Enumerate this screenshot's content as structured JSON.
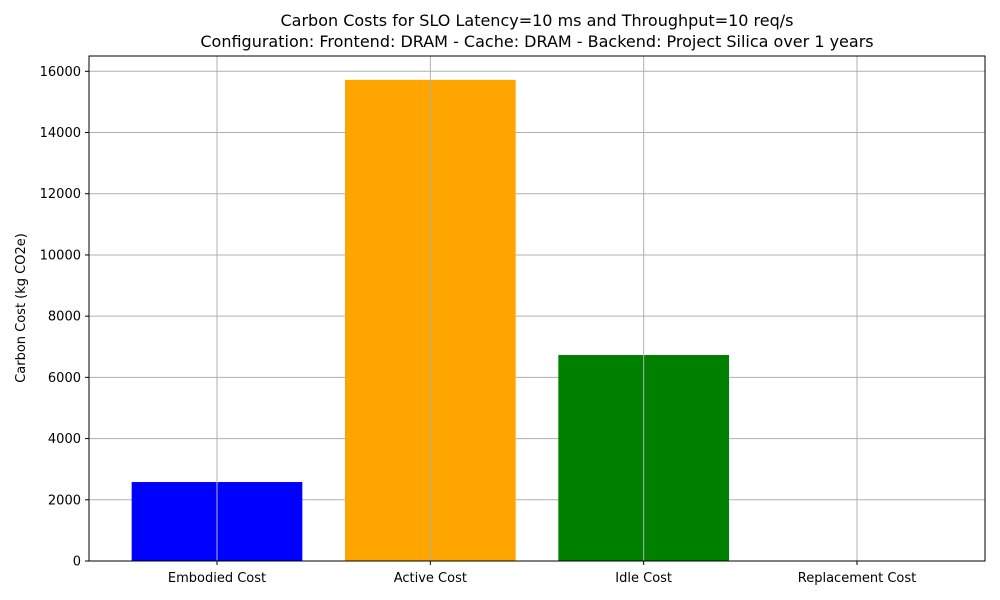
{
  "chart_data": {
    "type": "bar",
    "title": "Carbon Costs for SLO Latency=10 ms and Throughput=10 req/s",
    "subtitle": "Configuration: Frontend: DRAM - Cache: DRAM - Backend: Project Silica over 1 years",
    "xlabel": "",
    "ylabel": "Carbon Cost (kg CO2e)",
    "categories": [
      "Embodied Cost",
      "Active Cost",
      "Idle Cost",
      "Replacement Cost"
    ],
    "values": [
      2580,
      15720,
      6730,
      0
    ],
    "colors": [
      "#0000ff",
      "#ffa500",
      "#008000",
      "#ff0000"
    ],
    "ylim": [
      0,
      16500
    ],
    "yticks": [
      0,
      2000,
      4000,
      6000,
      8000,
      10000,
      12000,
      14000,
      16000
    ],
    "ytick_labels": [
      "0",
      "2000",
      "4000",
      "6000",
      "8000",
      "10000",
      "12000",
      "14000",
      "16000"
    ],
    "grid": true,
    "legend": "none"
  }
}
